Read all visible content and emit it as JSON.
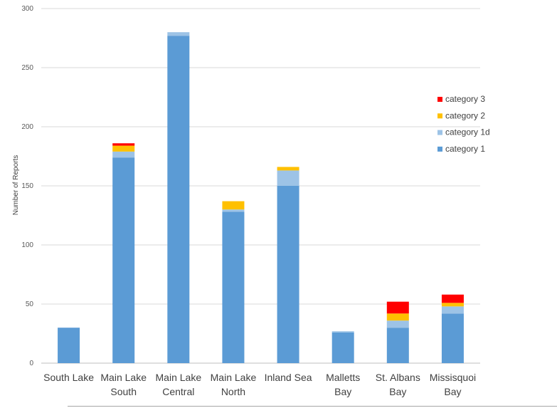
{
  "chart_data": {
    "type": "bar",
    "stacked": true,
    "ylabel": "Number of Reports",
    "xlabel": "",
    "ylim": [
      0,
      300
    ],
    "yticks": [
      0,
      50,
      100,
      150,
      200,
      250,
      300
    ],
    "grid": true,
    "legend_position": "right",
    "categories": [
      [
        "South Lake"
      ],
      [
        "Main Lake",
        "South"
      ],
      [
        "Main Lake",
        "Central"
      ],
      [
        "Main Lake",
        "North"
      ],
      [
        "Inland Sea"
      ],
      [
        "Malletts",
        "Bay"
      ],
      [
        "St. Albans",
        "Bay"
      ],
      [
        "Missisquoi",
        "Bay"
      ]
    ],
    "series": [
      {
        "name": "category 1",
        "color": "#5b9bd5",
        "values": [
          30,
          174,
          277,
          128,
          150,
          26,
          30,
          42
        ]
      },
      {
        "name": "category 1d",
        "color": "#9dc3e6",
        "values": [
          0,
          5,
          3,
          2,
          13,
          1,
          6,
          6
        ]
      },
      {
        "name": "category 2",
        "color": "#ffc000",
        "values": [
          0,
          5,
          0,
          7,
          3,
          0,
          6,
          3
        ]
      },
      {
        "name": "category 3",
        "color": "#ff0000",
        "values": [
          0,
          2,
          0,
          0,
          0,
          0,
          10,
          7
        ]
      }
    ],
    "legend_order": [
      3,
      2,
      1,
      0
    ]
  }
}
